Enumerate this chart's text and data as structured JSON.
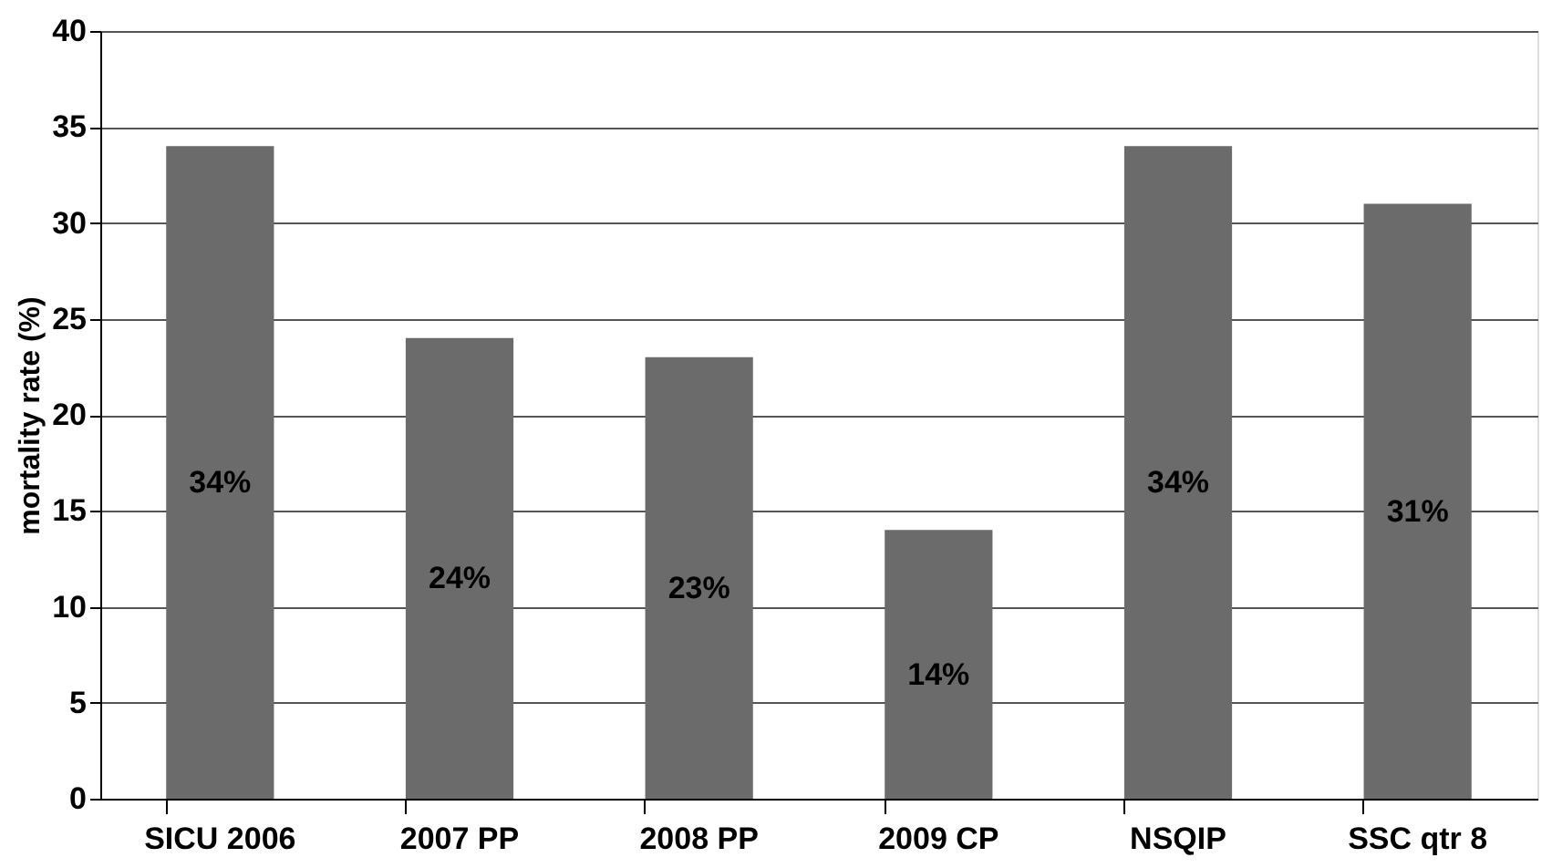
{
  "chart_data": {
    "type": "bar",
    "ylabel": "mortality rate (%)",
    "categories": [
      "SICU 2006",
      "2007 PP",
      "2008 PP",
      "2009 CP",
      "NSQIP",
      "SSC qtr 8"
    ],
    "values": [
      34,
      24,
      23,
      14,
      34,
      31
    ],
    "value_labels": [
      "34%",
      "24%",
      "23%",
      "14%",
      "34%",
      "31%"
    ],
    "color": "#6b6b6b",
    "ylim": [
      0,
      40
    ],
    "yticks": [
      0,
      5,
      10,
      15,
      20,
      25,
      30,
      35,
      40
    ],
    "grid": "y"
  }
}
